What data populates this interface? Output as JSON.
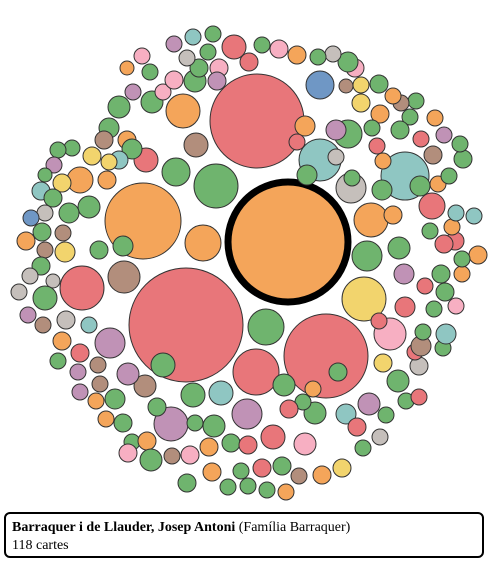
{
  "colors": {
    "red": "#e8767a",
    "orange": "#f4a55a",
    "green": "#6fb46e",
    "teal": "#8fc6c2",
    "yellow": "#f2d46d",
    "pink": "#f7afc2",
    "purple": "#c092b6",
    "brown": "#b28e7c",
    "grey": "#c5bfbb",
    "blue": "#6f97c5"
  },
  "selected": {
    "name": "Barraquer i de Llauder, Josep Antoni",
    "family": "(Família Barraquer)",
    "count": "118 cartes"
  }
}
